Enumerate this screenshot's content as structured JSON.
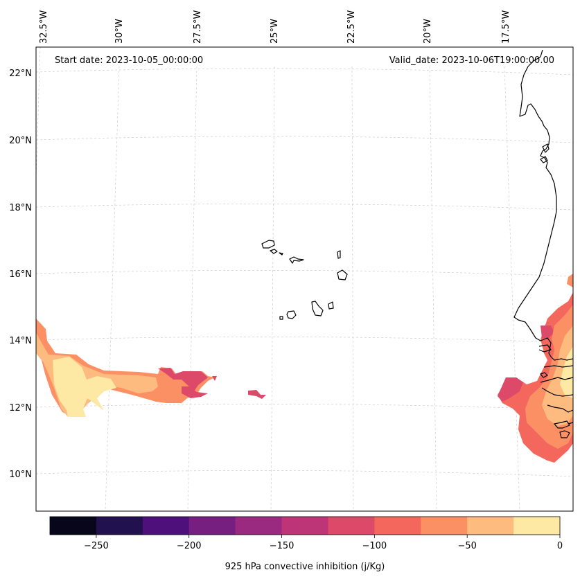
{
  "map": {
    "start_date": "Start date: 2023-10-05_00:00:00",
    "valid_date": "Valid_date: 2023-10-06T19:00:00.00",
    "lon_labels": [
      "32.5°W",
      "30°W",
      "27.5°W",
      "25°W",
      "22.5°W",
      "20°W",
      "17.5°W"
    ],
    "lat_labels": [
      "22°N",
      "20°N",
      "18°N",
      "16°N",
      "14°N",
      "12°N",
      "10°N"
    ]
  },
  "colorbar": {
    "label": "925 hPa convective inhibition (j/Kg)",
    "range": [
      -275,
      0
    ],
    "tick_labels": [
      "−250",
      "−200",
      "−150",
      "−100",
      "−50",
      "0"
    ],
    "tick_values": [
      -250,
      -200,
      -150,
      -100,
      -50,
      0
    ],
    "colors": [
      "#07061a",
      "#21114e",
      "#4e117b",
      "#761f81",
      "#9a2a80",
      "#bd3477",
      "#dd4968",
      "#f3675d",
      "#fc9065",
      "#febb80",
      "#fde8a4"
    ]
  },
  "colors": {
    "coastline": "#000000",
    "gridline": "#cccccc"
  }
}
